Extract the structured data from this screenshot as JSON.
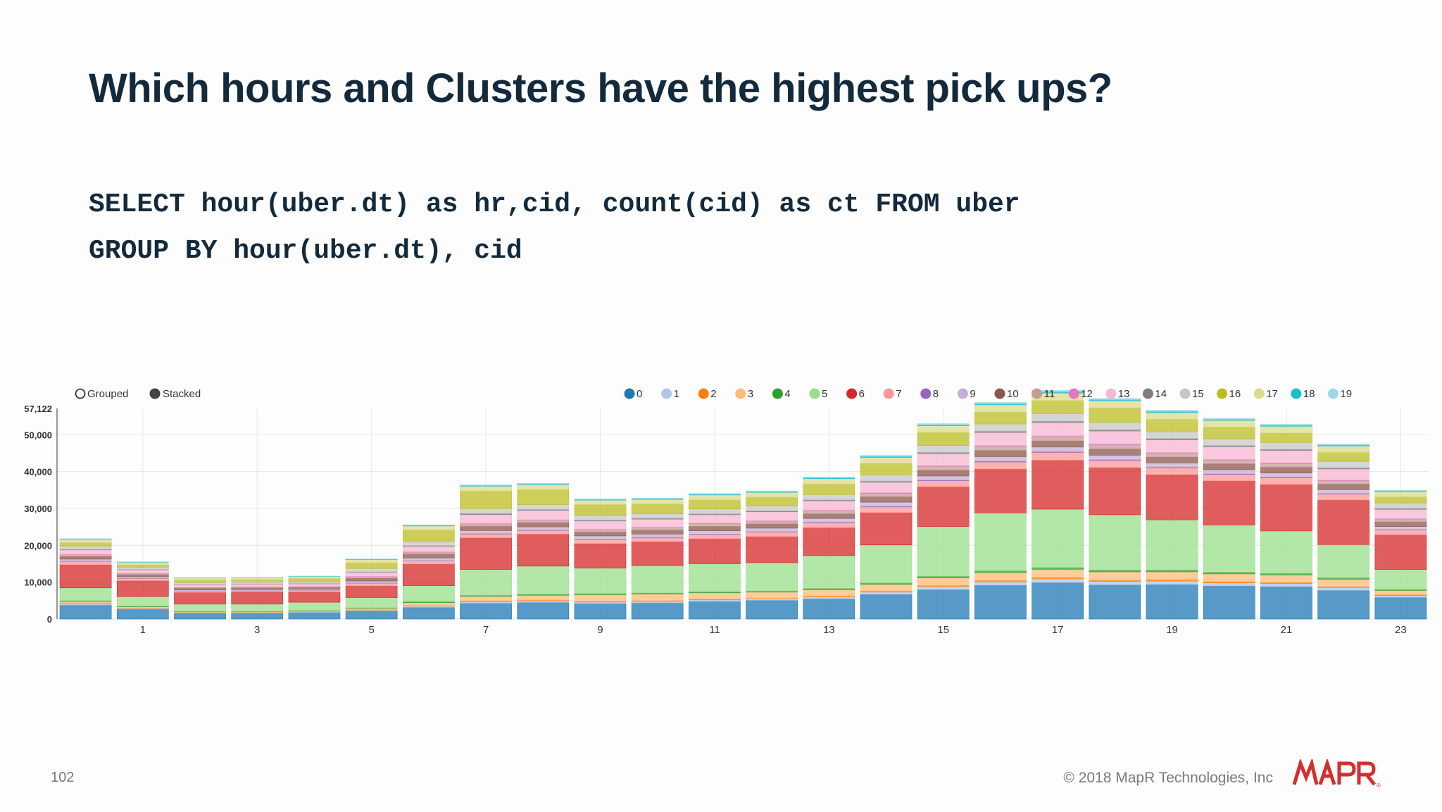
{
  "slide": {
    "title": "Which hours and Clusters have the highest pick ups?",
    "sql_line1": "SELECT hour(uber.dt) as hr,cid, count(cid) as ct FROM uber",
    "sql_line2": "GROUP BY hour(uber.dt), cid",
    "page_number": "102",
    "copyright": "© 2018 MapR Technologies, Inc",
    "logo_text": "MAPR"
  },
  "controls": {
    "grouped_label": "Grouped",
    "stacked_label": "Stacked",
    "selected": "Stacked"
  },
  "chart_data": {
    "type": "bar",
    "stacked": true,
    "y_max_label": "57,122",
    "ylim": [
      0,
      57122
    ],
    "yticks": [
      0,
      10000,
      20000,
      30000,
      40000,
      50000
    ],
    "ytick_labels": [
      "0",
      "10,000",
      "20,000",
      "30,000",
      "40,000",
      "50,000"
    ],
    "grid": true,
    "legend_position": "top-right",
    "categories": [
      "0",
      "1",
      "2",
      "3",
      "4",
      "5",
      "6",
      "7",
      "8",
      "9",
      "10",
      "11",
      "12",
      "13",
      "14",
      "15",
      "16",
      "17",
      "18",
      "19",
      "20",
      "21",
      "22",
      "23"
    ],
    "xtick_labels": [
      "",
      "1",
      "",
      "3",
      "",
      "5",
      "",
      "7",
      "",
      "9",
      "",
      "11",
      "",
      "13",
      "",
      "15",
      "",
      "17",
      "",
      "19",
      "",
      "21",
      "",
      "23"
    ],
    "series": [
      {
        "name": "0",
        "color": "#1f77b4",
        "values": [
          3800,
          2700,
          1600,
          1600,
          1800,
          2200,
          3200,
          4300,
          4500,
          4200,
          4400,
          4800,
          5100,
          5500,
          6700,
          8000,
          9200,
          9900,
          9300,
          9400,
          9000,
          8800,
          7800,
          5900
        ]
      },
      {
        "name": "1",
        "color": "#aec7e8",
        "values": [
          300,
          200,
          100,
          100,
          150,
          200,
          300,
          400,
          400,
          400,
          400,
          400,
          400,
          500,
          600,
          800,
          900,
          1000,
          900,
          900,
          800,
          800,
          700,
          500
        ]
      },
      {
        "name": "2",
        "color": "#ff7f0e",
        "values": [
          150,
          100,
          50,
          50,
          60,
          80,
          150,
          250,
          250,
          200,
          200,
          200,
          200,
          250,
          300,
          350,
          400,
          400,
          400,
          400,
          350,
          350,
          300,
          250
        ]
      },
      {
        "name": "3",
        "color": "#ffbb78",
        "values": [
          500,
          350,
          200,
          200,
          250,
          400,
          800,
          1200,
          1300,
          1800,
          1800,
          1700,
          1600,
          1700,
          1800,
          2000,
          2100,
          2200,
          2200,
          2100,
          2100,
          2000,
          2000,
          1100
        ]
      },
      {
        "name": "4",
        "color": "#2ca02c",
        "values": [
          200,
          150,
          100,
          100,
          100,
          150,
          300,
          300,
          300,
          300,
          300,
          300,
          300,
          350,
          400,
          450,
          500,
          500,
          500,
          500,
          450,
          450,
          400,
          300
        ]
      },
      {
        "name": "5",
        "color": "#98df8a",
        "values": [
          3500,
          2600,
          2000,
          2000,
          2200,
          2800,
          4300,
          7000,
          7600,
          6900,
          7400,
          7600,
          7700,
          8900,
          10300,
          13500,
          15700,
          15800,
          15000,
          13600,
          12800,
          11500,
          9000,
          5400
        ]
      },
      {
        "name": "6",
        "color": "#d62728",
        "values": [
          6300,
          4300,
          3200,
          3300,
          2800,
          3200,
          5900,
          8600,
          8700,
          6700,
          6500,
          6800,
          7100,
          7600,
          8800,
          10800,
          11900,
          13300,
          12800,
          12300,
          12000,
          12600,
          12100,
          9400
        ]
      },
      {
        "name": "7",
        "color": "#ff9896",
        "values": [
          900,
          600,
          300,
          300,
          400,
          700,
          800,
          1000,
          1000,
          1000,
          1000,
          1100,
          1200,
          1300,
          1500,
          1600,
          1900,
          2100,
          1900,
          1800,
          1700,
          1800,
          1600,
          1300
        ]
      },
      {
        "name": "8",
        "color": "#9467bd",
        "values": [
          100,
          80,
          50,
          50,
          50,
          80,
          100,
          150,
          150,
          150,
          150,
          150,
          150,
          180,
          200,
          200,
          250,
          250,
          250,
          250,
          220,
          220,
          200,
          150
        ]
      },
      {
        "name": "9",
        "color": "#c5b0d5",
        "values": [
          500,
          400,
          300,
          300,
          300,
          500,
          700,
          800,
          800,
          900,
          900,
          900,
          900,
          1000,
          1100,
          1100,
          1200,
          1200,
          1200,
          1100,
          1100,
          1100,
          1000,
          800
        ]
      },
      {
        "name": "10",
        "color": "#8c564b",
        "values": [
          800,
          600,
          500,
          500,
          500,
          800,
          1100,
          1200,
          1200,
          1100,
          1100,
          1200,
          1200,
          1300,
          1500,
          1600,
          1700,
          1700,
          1700,
          1600,
          1600,
          1600,
          1500,
          1300
        ]
      },
      {
        "name": "11",
        "color": "#c49c94",
        "values": [
          400,
          300,
          200,
          200,
          200,
          400,
          500,
          600,
          600,
          600,
          600,
          700,
          700,
          800,
          900,
          1000,
          1100,
          1100,
          1100,
          1000,
          1000,
          1000,
          900,
          700
        ]
      },
      {
        "name": "12",
        "color": "#e377c2",
        "values": [
          100,
          80,
          50,
          50,
          50,
          80,
          100,
          150,
          150,
          150,
          150,
          150,
          150,
          180,
          200,
          250,
          250,
          250,
          250,
          250,
          220,
          220,
          200,
          150
        ]
      },
      {
        "name": "13",
        "color": "#f7b6d2",
        "values": [
          1200,
          900,
          700,
          700,
          700,
          1100,
          1500,
          2400,
          2500,
          2200,
          2200,
          2300,
          2400,
          2500,
          2800,
          3200,
          3500,
          3600,
          3500,
          3400,
          3400,
          3300,
          3000,
          2500
        ]
      },
      {
        "name": "14",
        "color": "#7f7f7f",
        "values": [
          150,
          100,
          80,
          80,
          80,
          120,
          200,
          300,
          300,
          250,
          250,
          250,
          250,
          300,
          350,
          400,
          400,
          400,
          400,
          400,
          350,
          350,
          350,
          300
        ]
      },
      {
        "name": "15",
        "color": "#c7c7c7",
        "values": [
          900,
          600,
          500,
          500,
          500,
          900,
          1100,
          1300,
          1300,
          1200,
          1200,
          1300,
          1300,
          1400,
          1600,
          1800,
          1900,
          2000,
          1900,
          1800,
          1800,
          1800,
          1700,
          1400
        ]
      },
      {
        "name": "16",
        "color": "#bcbd22",
        "values": [
          900,
          700,
          700,
          700,
          900,
          1500,
          3100,
          4800,
          4100,
          3000,
          2700,
          2500,
          2400,
          2900,
          3200,
          3600,
          3300,
          3600,
          4000,
          3400,
          3200,
          2600,
          2500,
          1700
        ]
      },
      {
        "name": "17",
        "color": "#dbdb8d",
        "values": [
          900,
          600,
          500,
          500,
          500,
          900,
          1100,
          1300,
          1300,
          1200,
          1200,
          1300,
          1300,
          1400,
          1600,
          1800,
          1900,
          2000,
          1900,
          1800,
          1800,
          1800,
          1700,
          1400
        ]
      },
      {
        "name": "18",
        "color": "#17becf",
        "values": [
          100,
          80,
          50,
          50,
          60,
          100,
          150,
          200,
          200,
          200,
          200,
          200,
          200,
          250,
          300,
          300,
          350,
          400,
          350,
          350,
          300,
          300,
          300,
          200
        ]
      },
      {
        "name": "19",
        "color": "#9edae5",
        "values": [
          100,
          80,
          50,
          50,
          60,
          100,
          150,
          150,
          150,
          150,
          150,
          200,
          200,
          200,
          250,
          250,
          300,
          300,
          300,
          300,
          300,
          300,
          250,
          200
        ]
      }
    ]
  }
}
